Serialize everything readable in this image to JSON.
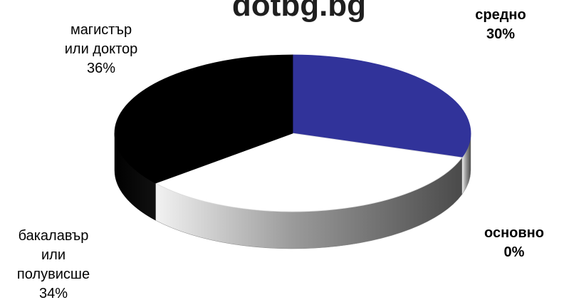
{
  "watermark": "dotbg.bg",
  "colors": {
    "blue": "#31339a",
    "black": "#000000",
    "white": "#ffffff",
    "gray": "#b4b4b4"
  },
  "chart_data": {
    "type": "pie",
    "three_d": true,
    "slices": [
      {
        "label_lines": [
          "средно"
        ],
        "value": 30,
        "value_label": "30%",
        "color": "#31339a",
        "bold": true
      },
      {
        "label_lines": [
          "основно"
        ],
        "value": 0,
        "value_label": "0%",
        "color": "#b4b4b4",
        "bold": true
      },
      {
        "label_lines": [
          "бакалавър",
          "или",
          "полувисше"
        ],
        "value": 34,
        "value_label": "34%",
        "color": "#ffffff",
        "bold": false
      },
      {
        "label_lines": [
          "магистър",
          "или доктор"
        ],
        "value": 36,
        "value_label": "36%",
        "color": "#000000",
        "bold": false
      }
    ]
  }
}
